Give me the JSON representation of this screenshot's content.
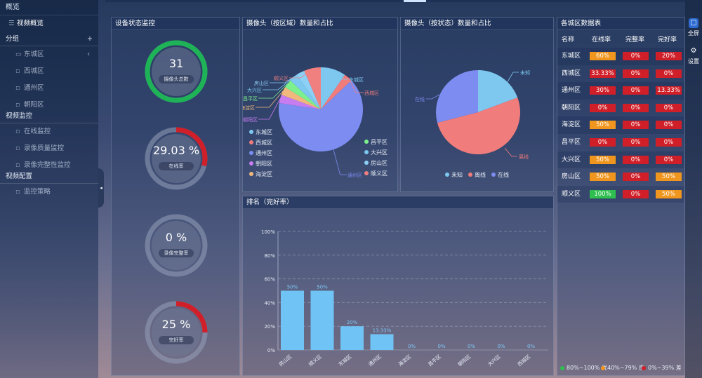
{
  "sidebar": {
    "top_header": "概览",
    "overview_item": "视频概览",
    "group_header": "分组",
    "group_plus": "+",
    "districts": [
      "东城区",
      "西城区",
      "通州区",
      "朝阳区"
    ],
    "chev": "‹",
    "monitor_header": "视频监控",
    "monitor_items": [
      "在线监控",
      "录像质量监控",
      "录像完整性监控"
    ],
    "config_header": "视频配置",
    "config_items": [
      "监控策略"
    ],
    "collapse_glyph": "◂"
  },
  "status_panel": {
    "title": "设备状态监控",
    "gauges": [
      {
        "value": "31",
        "label": "摄像头总数",
        "fraction": 1.0,
        "color": "#1fb357"
      },
      {
        "value": "29.03 %",
        "label": "在线率",
        "fraction": 0.2903,
        "color": "#d01f28"
      },
      {
        "value": "0 %",
        "label": "录像完整率",
        "fraction": 0,
        "color": "#d01f28"
      },
      {
        "value": "25 %",
        "label": "完好率",
        "fraction": 0.25,
        "color": "#d01f28"
      }
    ]
  },
  "pie_area": {
    "title": "摄像头（按区域）数量和占比",
    "chart_data": {
      "type": "pie",
      "title": "摄像头（按区域）数量和占比",
      "slices": [
        {
          "name": "东城区",
          "value": 3,
          "color": "#7ec8f0"
        },
        {
          "name": "西城区",
          "value": 1,
          "color": "#f07c7c"
        },
        {
          "name": "通州区",
          "value": 20,
          "color": "#7d8cf0"
        },
        {
          "name": "朝阳区",
          "value": 1,
          "color": "#c77cf0"
        },
        {
          "name": "海淀区",
          "value": 1,
          "color": "#f0b87c"
        },
        {
          "name": "昌平区",
          "value": 1,
          "color": "#7cf08c"
        },
        {
          "name": "大兴区",
          "value": 1,
          "color": "#7cc8f0"
        },
        {
          "name": "房山区",
          "value": 1,
          "color": "#8cd0f5"
        },
        {
          "name": "顺义区",
          "value": 2,
          "color": "#f08080"
        }
      ]
    }
  },
  "pie_status": {
    "title": "摄像头（按状态）数量和占比",
    "chart_data": {
      "type": "pie",
      "title": "摄像头（按状态）数量和占比",
      "slices": [
        {
          "name": "未知",
          "value": 6,
          "color": "#7ec8f0"
        },
        {
          "name": "离线",
          "value": 16,
          "color": "#f07c7c"
        },
        {
          "name": "在线",
          "value": 9,
          "color": "#7d8cf0"
        }
      ]
    }
  },
  "ranking": {
    "title": "排名（完好率）",
    "chart_data": {
      "type": "bar",
      "title": "排名（完好率）",
      "categories": [
        "房山区",
        "顺义区",
        "东城区",
        "通州区",
        "海淀区",
        "昌平区",
        "朝阳区",
        "大兴区",
        "西城区"
      ],
      "values": [
        50,
        50,
        20,
        13.33,
        0,
        0,
        0,
        0,
        0
      ],
      "value_labels": [
        "50%",
        "50%",
        "20%",
        "13.33%",
        "0%",
        "0%",
        "0%",
        "0%",
        "0%"
      ],
      "ylim": [
        0,
        100
      ],
      "yticks": [
        "0%",
        "20%",
        "40%",
        "60%",
        "80%",
        "100%"
      ],
      "color": "#6fc3f5"
    }
  },
  "table": {
    "title": "各城区数据表",
    "headers": [
      "名称",
      "在线率",
      "完整率",
      "完好率"
    ],
    "rows": [
      {
        "name": "东城区",
        "online": "60%",
        "complete": "0%",
        "good": "20%",
        "c": [
          "#f0961e",
          "#d01f28",
          "#d01f28"
        ]
      },
      {
        "name": "西城区",
        "online": "33.33%",
        "complete": "0%",
        "good": "0%",
        "c": [
          "#d01f28",
          "#d01f28",
          "#d01f28"
        ]
      },
      {
        "name": "通州区",
        "online": "30%",
        "complete": "0%",
        "good": "13.33%",
        "c": [
          "#d01f28",
          "#d01f28",
          "#d01f28"
        ]
      },
      {
        "name": "朝阳区",
        "online": "0%",
        "complete": "0%",
        "good": "0%",
        "c": [
          "#d01f28",
          "#d01f28",
          "#d01f28"
        ]
      },
      {
        "name": "海淀区",
        "online": "50%",
        "complete": "0%",
        "good": "0%",
        "c": [
          "#f0961e",
          "#d01f28",
          "#d01f28"
        ]
      },
      {
        "name": "昌平区",
        "online": "0%",
        "complete": "0%",
        "good": "0%",
        "c": [
          "#d01f28",
          "#d01f28",
          "#d01f28"
        ]
      },
      {
        "name": "大兴区",
        "online": "50%",
        "complete": "0%",
        "good": "0%",
        "c": [
          "#f0961e",
          "#d01f28",
          "#d01f28"
        ]
      },
      {
        "name": "房山区",
        "online": "50%",
        "complete": "0%",
        "good": "50%",
        "c": [
          "#f0961e",
          "#d01f28",
          "#f0961e"
        ]
      },
      {
        "name": "顺义区",
        "online": "100%",
        "complete": "0%",
        "good": "50%",
        "c": [
          "#2fbf4f",
          "#d01f28",
          "#f0961e"
        ]
      }
    ],
    "legend": [
      {
        "text": "80%~100% 优",
        "color": "#2fbf4f"
      },
      {
        "text": "40%~79% 良",
        "color": "#f0961e"
      },
      {
        "text": "0%~39% 差",
        "color": "#d01f28"
      }
    ]
  },
  "rightbar": {
    "fullscreen": "全屏",
    "settings": "设置",
    "fullscreen_glyph": "▢",
    "settings_glyph": "⚙"
  }
}
